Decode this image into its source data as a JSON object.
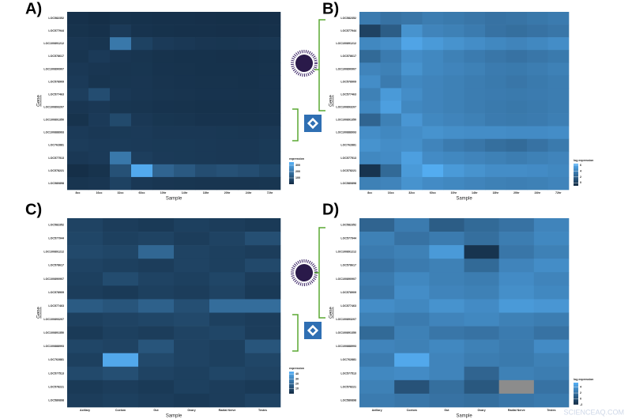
{
  "chart_data": [
    {
      "type": "heatmap",
      "title": "A)",
      "x_label": "Sample",
      "y_label": "Gene",
      "categories": [
        "8cc",
        "16cc",
        "32cc",
        "60cc",
        "10hr",
        "14hr",
        "18hr",
        "20hr",
        "24hr",
        "72hr"
      ],
      "rows": [
        "LOC582352",
        "LOC577944",
        "LOC100891212",
        "LOC578617",
        "LOC100890907",
        "LOC578909",
        "LOC577463",
        "LOC100893207",
        "LOC100891350",
        "LOC100888993",
        "LOC762881",
        "LOC577513",
        "LOC578221",
        "LOC580898"
      ],
      "values": [
        [
          15,
          10,
          20,
          18,
          15,
          15,
          14,
          12,
          12,
          14
        ],
        [
          20,
          15,
          40,
          22,
          18,
          16,
          15,
          14,
          14,
          16
        ],
        [
          30,
          25,
          200,
          60,
          40,
          35,
          30,
          28,
          30,
          32
        ],
        [
          25,
          40,
          30,
          25,
          20,
          18,
          18,
          16,
          15,
          18
        ],
        [
          35,
          30,
          25,
          28,
          22,
          20,
          18,
          18,
          18,
          20
        ],
        [
          40,
          25,
          28,
          30,
          24,
          22,
          20,
          20,
          18,
          22
        ],
        [
          50,
          90,
          35,
          30,
          26,
          24,
          22,
          22,
          20,
          22
        ],
        [
          30,
          35,
          28,
          25,
          22,
          20,
          18,
          18,
          18,
          20
        ],
        [
          20,
          40,
          80,
          35,
          28,
          25,
          22,
          22,
          20,
          22
        ],
        [
          40,
          35,
          38,
          40,
          35,
          35,
          35,
          33,
          32,
          35
        ],
        [
          45,
          40,
          42,
          40,
          38,
          38,
          36,
          35,
          35,
          38
        ],
        [
          35,
          40,
          200,
          50,
          40,
          38,
          36,
          35,
          35,
          38
        ],
        [
          10,
          20,
          100,
          330,
          150,
          120,
          90,
          100,
          90,
          70
        ],
        [
          25,
          30,
          60,
          35,
          30,
          28,
          26,
          25,
          25,
          28
        ]
      ],
      "colorbar_title": "expression",
      "clim": [
        0,
        350
      ],
      "cticks": [
        100,
        200,
        300
      ]
    },
    {
      "type": "heatmap",
      "title": "B)",
      "x_label": "Sample",
      "y_label": "Gene",
      "categories": [
        "8cc",
        "16cc",
        "32cc",
        "60cc",
        "10hr",
        "14hr",
        "18hr",
        "20hr",
        "24hr",
        "72hr"
      ],
      "rows": [
        "LOC582352",
        "LOC577944",
        "LOC100891212",
        "LOC578617",
        "LOC100890907",
        "LOC578909",
        "LOC577463",
        "LOC100893207",
        "LOC100891350",
        "LOC100888993",
        "LOC762881",
        "LOC577513",
        "LOC578221",
        "LOC580898"
      ],
      "values": [
        [
          3.5,
          3.0,
          3.2,
          3.6,
          3.4,
          3.2,
          3.0,
          3.1,
          3.3,
          3.5
        ],
        [
          0.3,
          1.8,
          4.8,
          4.0,
          3.8,
          3.5,
          3.0,
          2.8,
          3.0,
          3.2
        ],
        [
          4.2,
          4.5,
          5.8,
          5.2,
          4.8,
          4.5,
          4.2,
          4.0,
          4.2,
          4.5
        ],
        [
          2.5,
          3.5,
          4.5,
          4.2,
          3.8,
          3.5,
          3.2,
          3.0,
          3.2,
          3.4
        ],
        [
          4.0,
          3.8,
          4.8,
          4.2,
          4.0,
          3.8,
          3.5,
          3.4,
          3.6,
          3.8
        ],
        [
          4.5,
          3.5,
          4.2,
          4.0,
          3.8,
          3.6,
          3.4,
          3.2,
          3.4,
          3.6
        ],
        [
          3.8,
          5.2,
          4.5,
          4.0,
          3.8,
          3.6,
          3.5,
          3.4,
          3.5,
          3.6
        ],
        [
          4.2,
          5.5,
          4.2,
          4.0,
          3.8,
          3.6,
          3.4,
          3.3,
          3.4,
          3.6
        ],
        [
          2.2,
          3.8,
          5.0,
          4.2,
          4.0,
          3.8,
          3.5,
          3.4,
          3.5,
          3.7
        ],
        [
          4.5,
          4.2,
          4.5,
          4.8,
          4.6,
          4.5,
          4.5,
          4.4,
          4.4,
          4.5
        ],
        [
          4.8,
          4.5,
          4.6,
          4.0,
          3.5,
          3.2,
          2.8,
          2.6,
          3.0,
          3.4
        ],
        [
          4.2,
          4.4,
          5.5,
          4.4,
          4.2,
          4.0,
          3.8,
          3.6,
          3.8,
          4.0
        ],
        [
          -0.5,
          2.5,
          5.2,
          6.2,
          5.2,
          4.8,
          4.5,
          4.5,
          4.4,
          4.2
        ],
        [
          3.8,
          4.0,
          4.8,
          4.4,
          4.2,
          4.0,
          3.8,
          3.7,
          3.8,
          4.0
        ]
      ],
      "colorbar_title": "log expression",
      "clim": [
        -1,
        6.5
      ],
      "cticks": [
        0,
        2,
        4,
        6
      ]
    },
    {
      "type": "heatmap",
      "title": "C)",
      "x_label": "Sample",
      "y_label": "Gene",
      "categories": [
        "Axillary",
        "Coelom",
        "Gut",
        "Ovary",
        "Radial Nerve",
        "Testes"
      ],
      "rows": [
        "LOC582352",
        "LOC577944",
        "LOC100891212",
        "LOC578617",
        "LOC100890907",
        "LOC578909",
        "LOC577463",
        "LOC100893207",
        "LOC100891350",
        "LOC100888993",
        "LOC762881",
        "LOC577513",
        "LOC578221",
        "LOC580898"
      ],
      "values": [
        [
          8,
          6,
          5,
          7,
          6,
          5
        ],
        [
          9,
          7,
          8,
          6,
          8,
          12
        ],
        [
          10,
          9,
          20,
          8,
          7,
          6
        ],
        [
          8,
          7,
          6,
          8,
          7,
          10
        ],
        [
          7,
          11,
          8,
          7,
          9,
          6
        ],
        [
          6,
          5,
          7,
          6,
          8,
          5
        ],
        [
          16,
          14,
          18,
          12,
          22,
          22
        ],
        [
          7,
          8,
          9,
          10,
          7,
          6
        ],
        [
          5,
          7,
          6,
          8,
          9,
          6
        ],
        [
          9,
          8,
          14,
          8,
          7,
          14
        ],
        [
          7,
          42,
          10,
          8,
          7,
          9
        ],
        [
          10,
          12,
          8,
          7,
          9,
          8
        ],
        [
          5,
          6,
          5,
          7,
          6,
          5
        ],
        [
          6,
          7,
          6,
          5,
          6,
          8
        ]
      ],
      "colorbar_title": "expression",
      "clim": [
        0,
        45
      ],
      "cticks": [
        10,
        20,
        30,
        40
      ]
    },
    {
      "type": "heatmap",
      "title": "D)",
      "x_label": "Sample",
      "y_label": "Gene",
      "categories": [
        "Axillary",
        "Coelom",
        "Gut",
        "Ovary",
        "Radial Nerve",
        "Testes"
      ],
      "rows": [
        "LOC582352",
        "LOC577944",
        "LOC100891212",
        "LOC578617",
        "LOC100890907",
        "LOC578909",
        "LOC577463",
        "LOC100893207",
        "LOC100891350",
        "LOC100888993",
        "LOC762881",
        "LOC577513",
        "LOC578221",
        "LOC580898"
      ],
      "values": [
        [
          1.2,
          2.5,
          0.8,
          1.5,
          2.0,
          3.0
        ],
        [
          2.8,
          2.0,
          2.5,
          1.8,
          2.6,
          3.2
        ],
        [
          2.5,
          2.8,
          4.2,
          -1.5,
          2.2,
          2.8
        ],
        [
          2.0,
          2.5,
          2.8,
          1.5,
          3.0,
          3.5
        ],
        [
          2.5,
          3.2,
          2.8,
          2.6,
          3.4,
          3.0
        ],
        [
          2.2,
          3.5,
          3.0,
          2.8,
          3.6,
          3.2
        ],
        [
          3.5,
          3.2,
          3.8,
          3.4,
          4.2,
          4.0
        ],
        [
          2.8,
          2.5,
          3.0,
          3.2,
          2.8,
          2.6
        ],
        [
          1.5,
          2.8,
          2.2,
          2.0,
          2.5,
          2.0
        ],
        [
          3.0,
          2.8,
          3.2,
          2.8,
          2.5,
          3.4
        ],
        [
          2.5,
          5.0,
          3.0,
          2.6,
          2.4,
          2.8
        ],
        [
          3.2,
          3.4,
          3.0,
          1.2,
          2.8,
          2.6
        ],
        [
          2.8,
          0.2,
          1.8,
          0.5,
          null,
          2.0
        ],
        [
          2.5,
          2.2,
          2.0,
          1.8,
          2.2,
          2.4
        ]
      ],
      "colorbar_title": "log expression",
      "clim": [
        -2,
        5.5
      ],
      "cticks": [
        -2,
        0,
        2,
        4
      ]
    }
  ],
  "watermark": "SCIENCEAQ.COM"
}
